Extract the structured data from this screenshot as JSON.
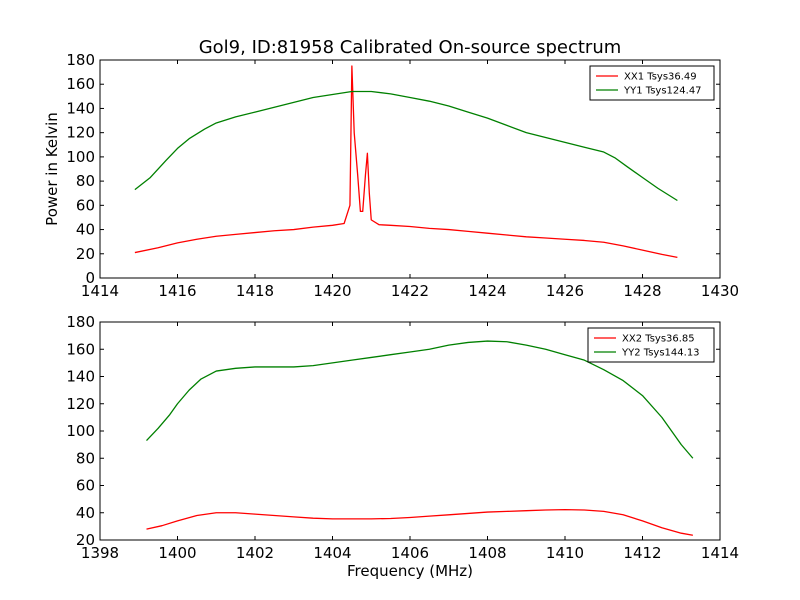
{
  "title": "Gol9, ID:81958 Calibrated On-source spectrum",
  "colors": {
    "red": "#ff0000",
    "green": "#008000"
  },
  "chart_data": [
    {
      "type": "line",
      "ylabel": "Power in Kelvin",
      "xlabel": "",
      "xlim": [
        1414,
        1430
      ],
      "ylim": [
        0,
        180
      ],
      "xticks": [
        1414,
        1416,
        1418,
        1420,
        1422,
        1424,
        1426,
        1428,
        1430
      ],
      "yticks": [
        0,
        20,
        40,
        60,
        80,
        100,
        120,
        140,
        160,
        180
      ],
      "legend_position": "top-right",
      "series": [
        {
          "name": "XX1 Tsys36.49",
          "color": "#ff0000",
          "points": [
            [
              1414.9,
              21
            ],
            [
              1415.5,
              25
            ],
            [
              1416.0,
              29
            ],
            [
              1416.5,
              32
            ],
            [
              1417.0,
              34.5
            ],
            [
              1417.5,
              36
            ],
            [
              1418.0,
              37.5
            ],
            [
              1418.5,
              39
            ],
            [
              1419.0,
              40
            ],
            [
              1419.5,
              42
            ],
            [
              1420.0,
              43.5
            ],
            [
              1420.3,
              45
            ],
            [
              1420.45,
              60
            ],
            [
              1420.5,
              175
            ],
            [
              1420.56,
              120
            ],
            [
              1420.65,
              85
            ],
            [
              1420.72,
              55
            ],
            [
              1420.78,
              55
            ],
            [
              1420.85,
              85
            ],
            [
              1420.9,
              103
            ],
            [
              1420.95,
              70
            ],
            [
              1421.0,
              48
            ],
            [
              1421.2,
              44
            ],
            [
              1421.5,
              43.5
            ],
            [
              1422.0,
              42.5
            ],
            [
              1422.5,
              41
            ],
            [
              1423.0,
              40
            ],
            [
              1423.5,
              38.5
            ],
            [
              1424.0,
              37
            ],
            [
              1424.5,
              35.5
            ],
            [
              1425.0,
              34
            ],
            [
              1425.5,
              33
            ],
            [
              1426.0,
              32
            ],
            [
              1426.5,
              31
            ],
            [
              1427.0,
              29.5
            ],
            [
              1427.5,
              26.5
            ],
            [
              1428.0,
              23
            ],
            [
              1428.5,
              19.5
            ],
            [
              1428.9,
              17
            ]
          ]
        },
        {
          "name": "YY1 Tsys124.47",
          "color": "#008000",
          "points": [
            [
              1414.9,
              73
            ],
            [
              1415.3,
              83
            ],
            [
              1415.7,
              97
            ],
            [
              1416.0,
              107
            ],
            [
              1416.3,
              115
            ],
            [
              1416.7,
              123
            ],
            [
              1417.0,
              128
            ],
            [
              1417.5,
              133
            ],
            [
              1418.0,
              137
            ],
            [
              1418.5,
              141
            ],
            [
              1419.0,
              145
            ],
            [
              1419.5,
              149
            ],
            [
              1420.0,
              151.5
            ],
            [
              1420.5,
              154
            ],
            [
              1421.0,
              154
            ],
            [
              1421.5,
              152
            ],
            [
              1422.0,
              149
            ],
            [
              1422.5,
              146
            ],
            [
              1423.0,
              142
            ],
            [
              1423.5,
              137
            ],
            [
              1424.0,
              132
            ],
            [
              1424.5,
              126
            ],
            [
              1425.0,
              120
            ],
            [
              1425.5,
              116
            ],
            [
              1426.0,
              112
            ],
            [
              1426.5,
              108
            ],
            [
              1427.0,
              104
            ],
            [
              1427.3,
              99
            ],
            [
              1427.6,
              92
            ],
            [
              1428.0,
              83
            ],
            [
              1428.4,
              74
            ],
            [
              1428.9,
              64
            ]
          ]
        }
      ]
    },
    {
      "type": "line",
      "ylabel": "",
      "xlabel": "Frequency (MHz)",
      "xlim": [
        1398,
        1414
      ],
      "ylim": [
        20,
        180
      ],
      "xticks": [
        1398,
        1400,
        1402,
        1404,
        1406,
        1408,
        1410,
        1412,
        1414
      ],
      "yticks": [
        20,
        40,
        60,
        80,
        100,
        120,
        140,
        160,
        180
      ],
      "legend_position": "top-right",
      "series": [
        {
          "name": "XX2 Tsys36.85",
          "color": "#ff0000",
          "points": [
            [
              1399.2,
              28
            ],
            [
              1399.6,
              30.5
            ],
            [
              1400.0,
              34
            ],
            [
              1400.5,
              38
            ],
            [
              1401.0,
              40
            ],
            [
              1401.5,
              40
            ],
            [
              1402.0,
              39
            ],
            [
              1402.5,
              38
            ],
            [
              1403.0,
              37
            ],
            [
              1403.5,
              36
            ],
            [
              1404.0,
              35.5
            ],
            [
              1404.5,
              35.5
            ],
            [
              1405.0,
              35.5
            ],
            [
              1405.5,
              35.8
            ],
            [
              1406.0,
              36.5
            ],
            [
              1406.5,
              37.5
            ],
            [
              1407.0,
              38.5
            ],
            [
              1407.5,
              39.5
            ],
            [
              1408.0,
              40.5
            ],
            [
              1408.5,
              41
            ],
            [
              1409.0,
              41.5
            ],
            [
              1409.5,
              42
            ],
            [
              1410.0,
              42.3
            ],
            [
              1410.5,
              42
            ],
            [
              1411.0,
              41
            ],
            [
              1411.5,
              38.5
            ],
            [
              1412.0,
              34
            ],
            [
              1412.5,
              29
            ],
            [
              1413.0,
              25
            ],
            [
              1413.3,
              23.5
            ]
          ]
        },
        {
          "name": "YY2 Tsys144.13",
          "color": "#008000",
          "points": [
            [
              1399.2,
              93
            ],
            [
              1399.5,
              102
            ],
            [
              1399.8,
              112
            ],
            [
              1400.0,
              120
            ],
            [
              1400.3,
              130
            ],
            [
              1400.6,
              138
            ],
            [
              1401.0,
              144
            ],
            [
              1401.5,
              146
            ],
            [
              1402.0,
              147
            ],
            [
              1402.5,
              147
            ],
            [
              1403.0,
              147
            ],
            [
              1403.5,
              148
            ],
            [
              1404.0,
              150
            ],
            [
              1404.5,
              152
            ],
            [
              1405.0,
              154
            ],
            [
              1405.5,
              156
            ],
            [
              1406.0,
              158
            ],
            [
              1406.5,
              160
            ],
            [
              1407.0,
              163
            ],
            [
              1407.5,
              165
            ],
            [
              1408.0,
              166
            ],
            [
              1408.5,
              165.5
            ],
            [
              1409.0,
              163
            ],
            [
              1409.5,
              160
            ],
            [
              1410.0,
              156
            ],
            [
              1410.5,
              152
            ],
            [
              1411.0,
              145
            ],
            [
              1411.5,
              137
            ],
            [
              1412.0,
              126
            ],
            [
              1412.5,
              110
            ],
            [
              1413.0,
              90
            ],
            [
              1413.3,
              80
            ]
          ]
        }
      ]
    }
  ]
}
